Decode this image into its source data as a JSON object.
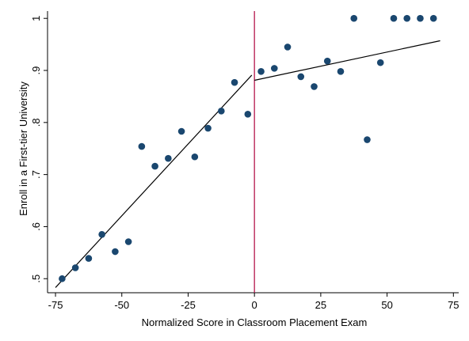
{
  "chart_data": {
    "type": "scatter",
    "xlabel": "Normalized Score in Classroom Placement Exam",
    "ylabel": "Enroll in a First-tier University",
    "x": [
      -72.5,
      -67.5,
      -62.5,
      -57.5,
      -52.5,
      -47.5,
      -42.5,
      -37.5,
      -32.5,
      -27.5,
      -22.5,
      -17.5,
      -12.5,
      -7.5,
      -2.5,
      2.5,
      7.5,
      12.5,
      17.5,
      22.5,
      27.5,
      32.5,
      37.5,
      42.5,
      47.5,
      52.5,
      57.5,
      62.5,
      67.5
    ],
    "values": [
      0.5,
      0.521,
      0.539,
      0.585,
      0.552,
      0.571,
      0.754,
      0.716,
      0.731,
      0.783,
      0.734,
      0.789,
      0.822,
      0.877,
      0.816,
      0.898,
      0.904,
      0.945,
      0.888,
      0.869,
      0.918,
      0.898,
      1,
      0.767,
      0.915,
      1,
      1,
      1,
      1
    ],
    "color": "#1a476f",
    "fit_lines": [
      {
        "x": [
          -75,
          -1
        ],
        "values": [
          0.483,
          0.891
        ],
        "color": "#000000"
      },
      {
        "x": [
          0,
          70
        ],
        "values": [
          0.881,
          0.957
        ],
        "color": "#000000"
      }
    ],
    "cutoff": 0,
    "cutoff_color": "#b5174d",
    "xlim": [
      -78,
      77
    ],
    "ylim": [
      0.473,
      1.014
    ],
    "xticks": [
      -75,
      -50,
      -25,
      0,
      25,
      50,
      75
    ],
    "yticks": [
      {
        "value": 0.5,
        "label": ".5"
      },
      {
        "value": 0.6,
        "label": ".6"
      },
      {
        "value": 0.7,
        "label": ".7"
      },
      {
        "value": 0.8,
        "label": ".8"
      },
      {
        "value": 0.9,
        "label": ".9"
      },
      1
    ]
  }
}
